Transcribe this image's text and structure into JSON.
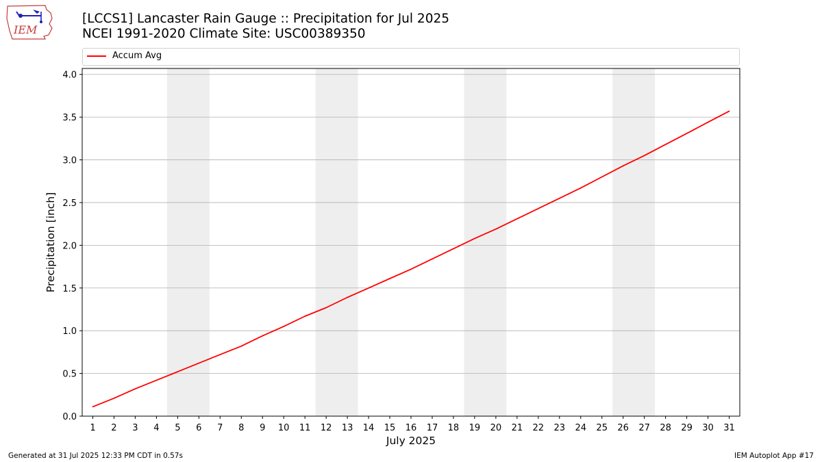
{
  "header": {
    "logo_text": "IEM",
    "title_line1": "[LCCS1] Lancaster Rain Gauge :: Precipitation for Jul 2025",
    "title_line2": "NCEI 1991-2020 Climate Site: USC00389350"
  },
  "footer": {
    "generated": "Generated at 31 Jul 2025 12:33 PM CDT in 0.57s",
    "app": "IEM Autoplot App #17"
  },
  "colors": {
    "series": "#ff0000",
    "weekend_band": "#eeeeee",
    "grid": "#b0b0b0"
  },
  "chart_data": {
    "type": "line",
    "xlabel": "July 2025",
    "ylabel": "Precipitation [inch]",
    "xlim": [
      0.5,
      31.5
    ],
    "ylim": [
      0,
      4.07
    ],
    "yticks": [
      0.0,
      0.5,
      1.0,
      1.5,
      2.0,
      2.5,
      3.0,
      3.5,
      4.0
    ],
    "ytick_labels": [
      "0.0",
      "0.5",
      "1.0",
      "1.5",
      "2.0",
      "2.5",
      "3.0",
      "3.5",
      "4.0"
    ],
    "xticks": [
      1,
      2,
      3,
      4,
      5,
      6,
      7,
      8,
      9,
      10,
      11,
      12,
      13,
      14,
      15,
      16,
      17,
      18,
      19,
      20,
      21,
      22,
      23,
      24,
      25,
      26,
      27,
      28,
      29,
      30,
      31
    ],
    "xtick_labels": [
      "1",
      "2",
      "3",
      "4",
      "5",
      "6",
      "7",
      "8",
      "9",
      "10",
      "11",
      "12",
      "13",
      "14",
      "15",
      "16",
      "17",
      "18",
      "19",
      "20",
      "21",
      "22",
      "23",
      "24",
      "25",
      "26",
      "27",
      "28",
      "29",
      "30",
      "31"
    ],
    "grid": "horizontal",
    "legend_position": "top",
    "weekend_bands": [
      [
        5,
        6
      ],
      [
        12,
        13
      ],
      [
        19,
        20
      ],
      [
        26,
        27
      ]
    ],
    "series": [
      {
        "name": "Accum Avg",
        "x": [
          1,
          2,
          3,
          4,
          5,
          6,
          7,
          8,
          9,
          10,
          11,
          12,
          13,
          14,
          15,
          16,
          17,
          18,
          19,
          20,
          21,
          22,
          23,
          24,
          25,
          26,
          27,
          28,
          29,
          30,
          31
        ],
        "values": [
          0.11,
          0.21,
          0.32,
          0.42,
          0.52,
          0.62,
          0.72,
          0.82,
          0.94,
          1.05,
          1.17,
          1.27,
          1.39,
          1.5,
          1.61,
          1.72,
          1.84,
          1.96,
          2.08,
          2.19,
          2.31,
          2.43,
          2.55,
          2.67,
          2.8,
          2.93,
          3.05,
          3.18,
          3.31,
          3.44,
          3.57
        ]
      }
    ]
  }
}
